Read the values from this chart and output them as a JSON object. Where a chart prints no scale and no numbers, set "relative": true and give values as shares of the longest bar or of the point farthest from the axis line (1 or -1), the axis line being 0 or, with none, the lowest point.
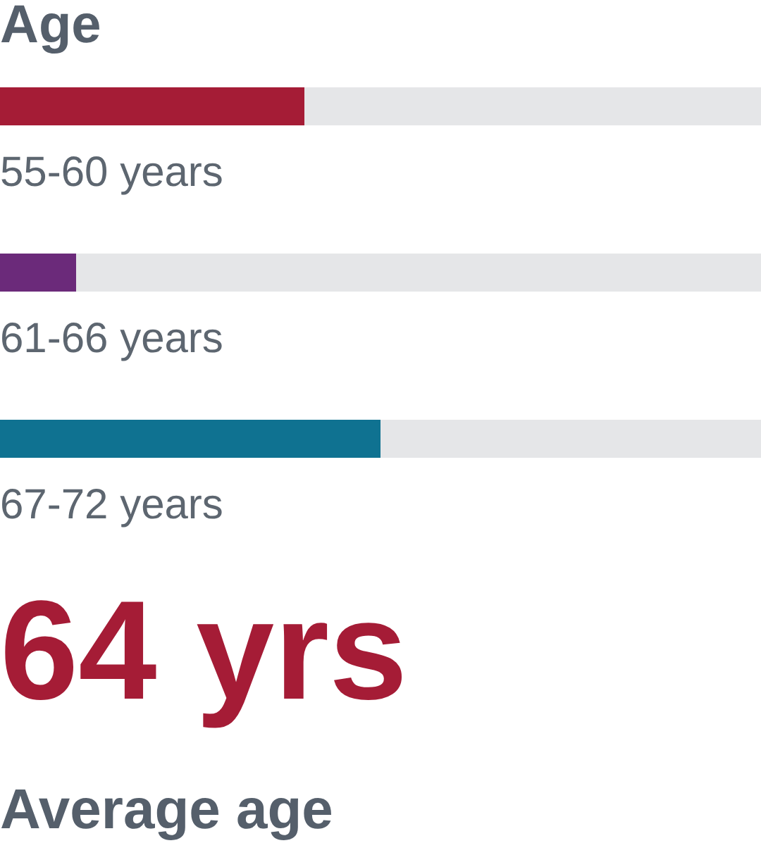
{
  "chart_data": {
    "type": "bar",
    "orientation": "horizontal",
    "relative": true,
    "title": "Age",
    "categories": [
      "55-60 years",
      "61-66 years",
      "67-72 years"
    ],
    "values": [
      0.8,
      0.2,
      1
    ],
    "colors": [
      "#a51c36",
      "#6b2a7a",
      "#0f7291"
    ],
    "bands": [
      {
        "axis": "x",
        "from": 0,
        "to": 2,
        "color": "#e5e6e8"
      }
    ],
    "annotations": [
      "64 yrs",
      "Average age"
    ]
  }
}
